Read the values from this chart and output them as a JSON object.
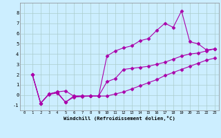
{
  "xlabel": "Windchill (Refroidissement éolien,°C)",
  "bg_color": "#cceeff",
  "grid_color": "#aacccc",
  "line_color": "#aa00aa",
  "xlim": [
    -0.5,
    23.5
  ],
  "ylim": [
    -1.5,
    9.0
  ],
  "xticks": [
    0,
    1,
    2,
    3,
    4,
    5,
    6,
    7,
    8,
    9,
    10,
    11,
    12,
    13,
    14,
    15,
    16,
    17,
    18,
    19,
    20,
    21,
    22,
    23
  ],
  "yticks": [
    -1,
    0,
    1,
    2,
    3,
    4,
    5,
    6,
    7,
    8
  ],
  "series1_x": [
    1,
    2,
    3,
    4,
    5,
    6,
    7,
    8,
    9,
    10,
    11,
    12,
    13,
    14,
    15,
    16,
    17,
    18,
    19,
    20,
    21,
    22,
    23
  ],
  "series1_y": [
    2.0,
    -0.8,
    0.1,
    0.3,
    -0.7,
    -0.1,
    -0.1,
    -0.1,
    -0.1,
    3.8,
    4.3,
    4.6,
    4.8,
    5.3,
    5.5,
    6.3,
    7.0,
    6.6,
    8.2,
    5.2,
    5.0,
    4.4,
    4.5
  ],
  "series2_x": [
    1,
    2,
    3,
    4,
    5,
    6,
    7,
    8,
    9,
    10,
    11,
    12,
    13,
    14,
    15,
    16,
    17,
    18,
    19,
    20,
    21,
    22,
    23
  ],
  "series2_y": [
    2.0,
    -0.8,
    0.1,
    0.3,
    0.4,
    -0.1,
    -0.1,
    -0.1,
    -0.1,
    1.3,
    1.6,
    2.5,
    2.6,
    2.7,
    2.8,
    3.0,
    3.2,
    3.5,
    3.8,
    4.0,
    4.1,
    4.3,
    4.5
  ],
  "series3_x": [
    1,
    2,
    3,
    4,
    5,
    6,
    7,
    8,
    9,
    10,
    11,
    12,
    13,
    14,
    15,
    16,
    17,
    18,
    19,
    20,
    21,
    22,
    23
  ],
  "series3_y": [
    2.0,
    -0.8,
    0.05,
    0.2,
    -0.7,
    -0.2,
    -0.15,
    -0.1,
    -0.1,
    -0.1,
    0.1,
    0.3,
    0.6,
    0.9,
    1.2,
    1.5,
    1.9,
    2.2,
    2.5,
    2.8,
    3.1,
    3.4,
    3.6
  ]
}
